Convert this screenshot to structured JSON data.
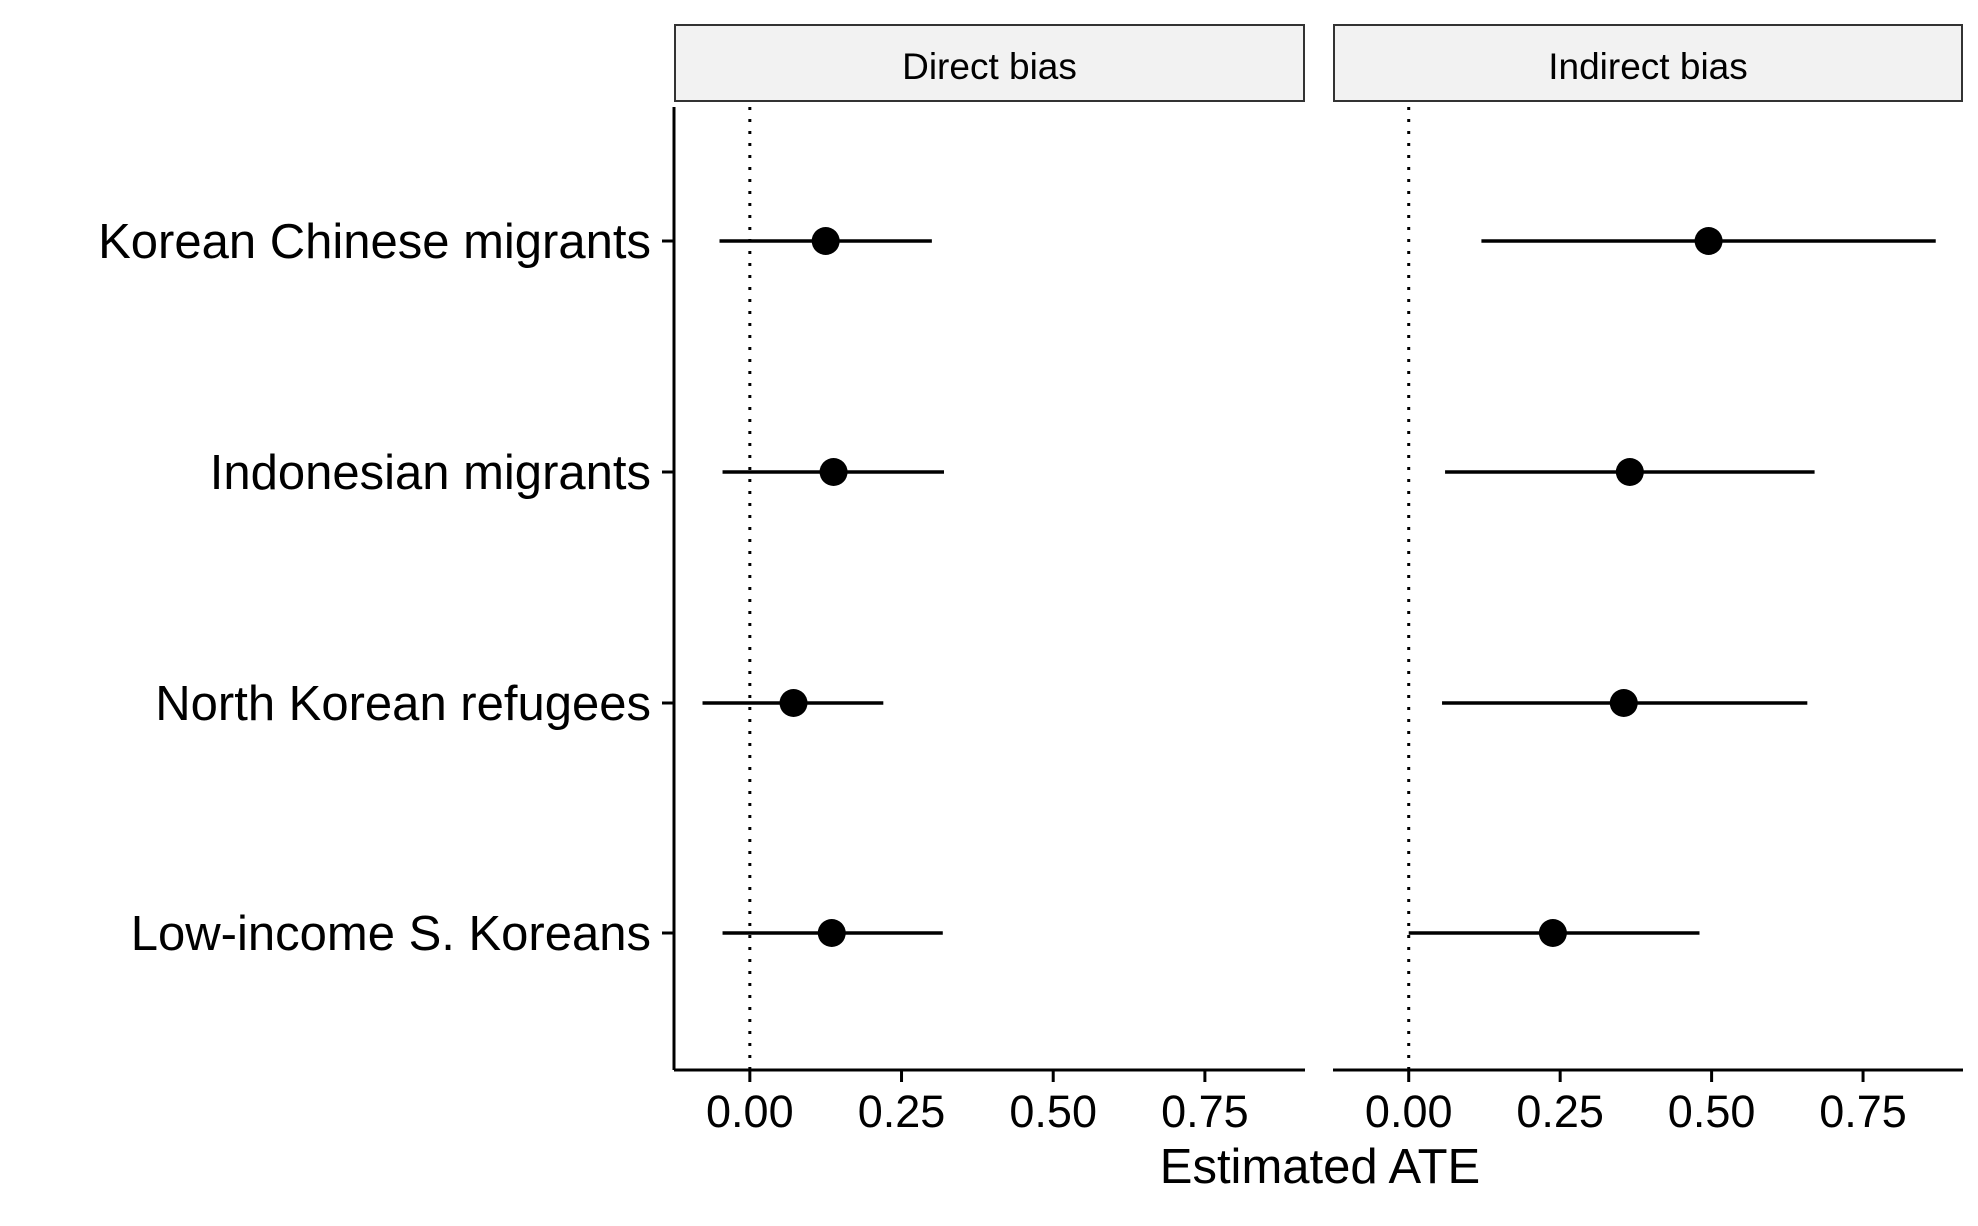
{
  "chart_data": {
    "type": "scatter",
    "subtype": "coefficient-plot",
    "categories": [
      "Korean Chinese migrants",
      "Indonesian migrants",
      "North Korean refugees",
      "Low-income S. Koreans"
    ],
    "xlabel": "Estimated ATE",
    "ylabel": "",
    "xlim": [
      -0.125,
      0.915
    ],
    "x_ticks": [
      0.0,
      0.25,
      0.5,
      0.75
    ],
    "x_tick_labels": [
      "0.00",
      "0.25",
      "0.50",
      "0.75"
    ],
    "reference_line": {
      "x": 0,
      "style": "dotted"
    },
    "grid": false,
    "legend": "none",
    "facets": [
      {
        "strip_label": "Direct bias",
        "estimates": [
          0.125,
          0.138,
          0.072,
          0.135
        ],
        "ci_low": [
          -0.05,
          -0.045,
          -0.078,
          -0.045
        ],
        "ci_high": [
          0.3,
          0.32,
          0.22,
          0.318
        ]
      },
      {
        "strip_label": "Indirect bias",
        "estimates": [
          0.495,
          0.365,
          0.355,
          0.238
        ],
        "ci_low": [
          0.12,
          0.06,
          0.055,
          0.0
        ],
        "ci_high": [
          0.87,
          0.67,
          0.658,
          0.48
        ]
      }
    ]
  }
}
